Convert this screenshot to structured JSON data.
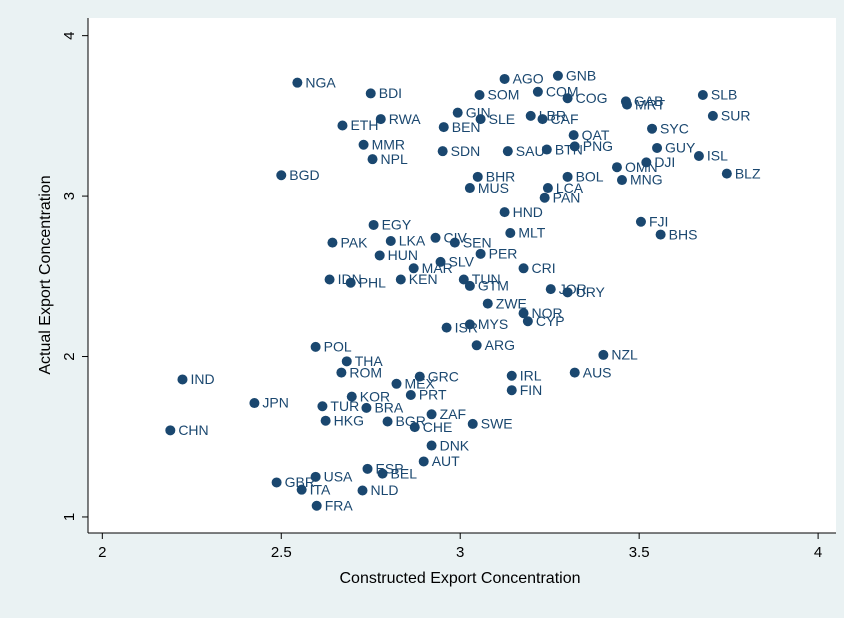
{
  "chart_data": {
    "type": "scatter",
    "x_label": "Constructed Export Concentration",
    "y_label": "Actual Export Concentration",
    "xlim": [
      1.96,
      4.05
    ],
    "ylim": [
      0.9,
      4.11
    ],
    "xticks": [
      2,
      2.5,
      3,
      3.5,
      4
    ],
    "yticks": [
      1,
      2,
      3,
      4
    ],
    "color": "#1a476f",
    "series": [
      {
        "name": "Countries",
        "color": "#1a476f",
        "labels": [
          "NGA",
          "BDI",
          "AGO",
          "GNB",
          "SOM",
          "COM",
          "COG",
          "GAB",
          "MRT",
          "SLB",
          "SUR",
          "ETH",
          "RWA",
          "BEN",
          "GIN",
          "SLE",
          "LBR",
          "CAF",
          "SYC",
          "QAT",
          "MMR",
          "SDN",
          "SAU",
          "BTN",
          "PNG",
          "GUY",
          "ISL",
          "DJI",
          "NPL",
          "BGD",
          "BLZ",
          "MNG",
          "OMN",
          "BOL",
          "FJI",
          "BHS",
          "EGY",
          "PAK",
          "LKA",
          "CIV",
          "SEN",
          "MLT",
          "HUN",
          "PER",
          "SLV",
          "CRI",
          "MAR",
          "IDN",
          "PHL",
          "KEN",
          "TUN",
          "GTM",
          "JOR",
          "URY",
          "ZWE",
          "NOR",
          "CYP",
          "MYS",
          "ISR",
          "ARG",
          "POL",
          "NZL",
          "THA",
          "ROM",
          "AUS",
          "IND",
          "GRC",
          "MEX",
          "IRL",
          "FIN",
          "PRT",
          "KOR",
          "TUR",
          "JPN",
          "BRA",
          "ZAF",
          "HKG",
          "BGR",
          "CHE",
          "SWE",
          "CHN",
          "DNK",
          "AUT",
          "ESP",
          "USA",
          "BEL",
          "GBR",
          "ITA",
          "NLD",
          "FRA",
          "PAN",
          "HND",
          "MUS",
          "BHR",
          "LCA"
        ],
        "x": [
          2.545,
          2.75,
          3.124,
          3.273,
          3.054,
          3.217,
          3.3,
          3.463,
          3.466,
          3.678,
          3.706,
          2.671,
          2.778,
          2.954,
          2.993,
          3.057,
          3.197,
          3.23,
          3.536,
          3.317,
          2.73,
          2.951,
          3.133,
          3.242,
          3.32,
          3.55,
          3.667,
          3.52,
          2.755,
          2.5,
          3.745,
          3.452,
          3.438,
          3.3,
          3.505,
          3.56,
          2.758,
          2.643,
          2.806,
          2.931,
          2.985,
          3.14,
          2.775,
          3.057,
          2.945,
          3.177,
          2.87,
          2.635,
          2.694,
          2.834,
          3.01,
          3.027,
          3.253,
          3.3,
          3.077,
          3.177,
          3.189,
          3.027,
          2.962,
          3.046,
          2.596,
          3.4,
          2.683,
          2.668,
          3.32,
          2.224,
          2.887,
          2.822,
          3.144,
          3.144,
          2.862,
          2.697,
          2.615,
          2.425,
          2.738,
          2.92,
          2.624,
          2.797,
          2.873,
          3.035,
          2.19,
          2.92,
          2.898,
          2.741,
          2.596,
          2.783,
          2.487,
          2.557,
          2.727,
          2.599,
          3.236,
          3.124,
          3.027,
          3.049,
          3.245
        ],
        "values": [
          3.707,
          3.64,
          3.73,
          3.75,
          3.63,
          3.65,
          3.61,
          3.59,
          3.57,
          3.63,
          3.5,
          3.44,
          3.48,
          3.43,
          3.52,
          3.48,
          3.5,
          3.48,
          3.42,
          3.38,
          3.32,
          3.28,
          3.28,
          3.29,
          3.31,
          3.3,
          3.25,
          3.21,
          3.23,
          3.13,
          3.14,
          3.1,
          3.18,
          3.12,
          2.84,
          2.76,
          2.82,
          2.71,
          2.72,
          2.74,
          2.71,
          2.77,
          2.63,
          2.64,
          2.59,
          2.55,
          2.55,
          2.48,
          2.46,
          2.48,
          2.48,
          2.44,
          2.42,
          2.4,
          2.33,
          2.27,
          2.22,
          2.2,
          2.18,
          2.07,
          2.06,
          2.01,
          1.97,
          1.9,
          1.9,
          1.857,
          1.875,
          1.83,
          1.88,
          1.79,
          1.76,
          1.75,
          1.69,
          1.71,
          1.68,
          1.64,
          1.6,
          1.595,
          1.56,
          1.58,
          1.54,
          1.445,
          1.346,
          1.3,
          1.25,
          1.27,
          1.215,
          1.17,
          1.165,
          1.07,
          2.99,
          2.9,
          3.05,
          3.12,
          3.05
        ]
      }
    ]
  }
}
